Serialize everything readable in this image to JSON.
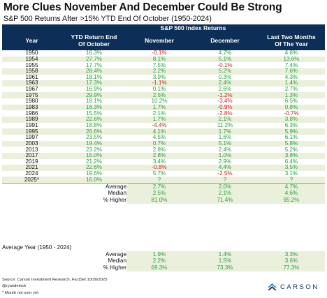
{
  "title": "More Clues November And December Could Be Strong",
  "subtitle": "S&P 500 Returns After >15% YTD End Of October (1950-2024)",
  "table": {
    "group_header": "S&P 500 Index Returns",
    "headers": {
      "year": "Year",
      "ytd_line1": "YTD Return End",
      "ytd_line2": "Of October",
      "nov": "November",
      "dec": "December",
      "last_line1": "Last Two Months",
      "last_line2": "Of The Year"
    },
    "rows": [
      {
        "year": "1950",
        "ytd": "16.3%",
        "nov": "-0.1%",
        "dec": "4.7%",
        "last": "4.6%"
      },
      {
        "year": "1954",
        "ytd": "27.7%",
        "nov": "8.1%",
        "dec": "5.1%",
        "last": "13.6%"
      },
      {
        "year": "1955",
        "ytd": "17.7%",
        "nov": "7.5%",
        "dec": "-0.1%",
        "last": "7.4%"
      },
      {
        "year": "1958",
        "ytd": "28.4%",
        "nov": "2.2%",
        "dec": "5.2%",
        "last": "7.6%"
      },
      {
        "year": "1961",
        "ytd": "18.1%",
        "nov": "3.9%",
        "dec": "0.3%",
        "last": "4.3%"
      },
      {
        "year": "1963",
        "ytd": "17.3%",
        "nov": "-1.1%",
        "dec": "2.4%",
        "last": "1.4%"
      },
      {
        "year": "1967",
        "ytd": "16.9%",
        "nov": "0.1%",
        "dec": "2.6%",
        "last": "2.7%"
      },
      {
        "year": "1975",
        "ytd": "29.9%",
        "nov": "2.5%",
        "dec": "-1.2%",
        "last": "1.3%"
      },
      {
        "year": "1980",
        "ytd": "18.1%",
        "nov": "10.2%",
        "dec": "-3.4%",
        "last": "6.5%"
      },
      {
        "year": "1983",
        "ytd": "16.3%",
        "nov": "1.7%",
        "dec": "-0.9%",
        "last": "0.8%"
      },
      {
        "year": "1986",
        "ytd": "15.5%",
        "nov": "2.1%",
        "dec": "-2.8%",
        "last": "-0.7%"
      },
      {
        "year": "1989",
        "ytd": "22.6%",
        "nov": "1.7%",
        "dec": "2.1%",
        "last": "3.8%"
      },
      {
        "year": "1991",
        "ytd": "18.8%",
        "nov": "-4.4%",
        "dec": "11.2%",
        "last": "6.3%"
      },
      {
        "year": "1995",
        "ytd": "26.6%",
        "nov": "4.1%",
        "dec": "1.7%",
        "last": "5.9%"
      },
      {
        "year": "1997",
        "ytd": "23.5%",
        "nov": "4.5%",
        "dec": "1.6%",
        "last": "6.1%"
      },
      {
        "year": "2003",
        "ytd": "19.4%",
        "nov": "0.7%",
        "dec": "5.1%",
        "last": "5.8%"
      },
      {
        "year": "2013",
        "ytd": "23.2%",
        "nov": "2.8%",
        "dec": "2.4%",
        "last": "5.2%"
      },
      {
        "year": "2017",
        "ytd": "15.0%",
        "nov": "2.8%",
        "dec": "1.0%",
        "last": "3.8%"
      },
      {
        "year": "2019",
        "ytd": "21.2%",
        "nov": "3.4%",
        "dec": "2.9%",
        "last": "6.4%"
      },
      {
        "year": "2021",
        "ytd": "22.6%",
        "nov": "-0.8%",
        "dec": "4.4%",
        "last": "3.5%"
      },
      {
        "year": "2024",
        "ytd": "19.6%",
        "nov": "5.7%",
        "dec": "-2.5%",
        "last": "3.1%"
      },
      {
        "year": "2025*",
        "ytd": "16.0%",
        "nov": "?",
        "dec": "?",
        "last": "?"
      }
    ],
    "stats": [
      {
        "label": "Average",
        "nov": "2.7%",
        "dec": "2.0%",
        "last": "4.7%"
      },
      {
        "label": "Median",
        "nov": "2.5%",
        "dec": "2.1%",
        "last": "4.6%"
      },
      {
        "label": "% Higher",
        "nov": "81.0%",
        "dec": "71.4%",
        "last": "95.2%"
      }
    ]
  },
  "average_year": {
    "title": "Average Year (1950 - 2024)",
    "rows": [
      {
        "label": "Average",
        "nov": "1.9%",
        "dec": "1.4%",
        "last": "3.3%"
      },
      {
        "label": "Median",
        "nov": "2.2%",
        "dec": "1.5%",
        "last": "3.6%"
      },
      {
        "label": "% Higher",
        "nov": "69.3%",
        "dec": "73.3%",
        "last": "77.3%"
      }
    ]
  },
  "footer": {
    "source": "Source: Carson Investment Research, FactSet 10/30/2025",
    "handle": "@ryandetrick",
    "note": "* Month not over yet"
  },
  "logo": {
    "text": "CARSON",
    "icon": "carson-chevron-logo-icon"
  },
  "colors": {
    "header_bg": "#0d2f57",
    "positive": "#2f9e44",
    "negative": "#cc1f1f",
    "stripe": "#eaf0dc"
  }
}
